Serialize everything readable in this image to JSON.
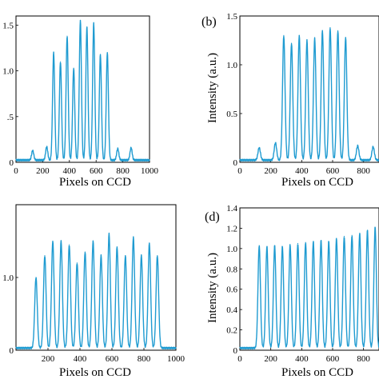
{
  "chart_data": [
    {
      "panel_label": "",
      "type": "line",
      "color": "#1f9bd1",
      "xlabel": "Pixels on CCD",
      "ylabel": "",
      "xlim": [
        0,
        1000
      ],
      "ylim": [
        0,
        1.6
      ],
      "xticks": [
        0,
        200,
        400,
        600,
        800,
        1000
      ],
      "yticks": [
        0,
        0.5,
        1.0,
        1.5
      ],
      "ytick_labels": [
        "0",
        ".5",
        "1.0",
        "1.5"
      ],
      "peaks": [
        {
          "x": 125,
          "y": 0.13
        },
        {
          "x": 230,
          "y": 0.17
        },
        {
          "x": 282,
          "y": 1.2
        },
        {
          "x": 333,
          "y": 1.1
        },
        {
          "x": 383,
          "y": 1.38
        },
        {
          "x": 432,
          "y": 1.03
        },
        {
          "x": 482,
          "y": 1.55
        },
        {
          "x": 531,
          "y": 1.48
        },
        {
          "x": 582,
          "y": 1.52
        },
        {
          "x": 632,
          "y": 1.18
        },
        {
          "x": 684,
          "y": 1.2
        },
        {
          "x": 762,
          "y": 0.15
        },
        {
          "x": 862,
          "y": 0.16
        }
      ]
    },
    {
      "panel_label": "(b)",
      "type": "line",
      "color": "#1f9bd1",
      "xlabel": "Pixels on CCD",
      "ylabel": "Intensity (a.u.)",
      "xlim": [
        0,
        900
      ],
      "ylim": [
        0,
        1.5
      ],
      "xticks": [
        0,
        200,
        400,
        600,
        800
      ],
      "yticks": [
        0,
        0.5,
        1.0,
        1.5
      ],
      "ytick_labels": [
        "0",
        "0.5",
        "1.0",
        "1.5"
      ],
      "peaks": [
        {
          "x": 125,
          "y": 0.15
        },
        {
          "x": 230,
          "y": 0.2
        },
        {
          "x": 284,
          "y": 1.3
        },
        {
          "x": 334,
          "y": 1.22
        },
        {
          "x": 384,
          "y": 1.3
        },
        {
          "x": 434,
          "y": 1.25
        },
        {
          "x": 484,
          "y": 1.27
        },
        {
          "x": 534,
          "y": 1.35
        },
        {
          "x": 584,
          "y": 1.38
        },
        {
          "x": 634,
          "y": 1.35
        },
        {
          "x": 684,
          "y": 1.28
        },
        {
          "x": 762,
          "y": 0.17
        },
        {
          "x": 862,
          "y": 0.16
        }
      ]
    },
    {
      "panel_label": "",
      "type": "line",
      "color": "#1f9bd1",
      "xlabel": "Pixels on CCD",
      "ylabel": "",
      "xlim": [
        0,
        1000
      ],
      "ylim": [
        0,
        2.0
      ],
      "xticks": [
        200,
        400,
        600,
        800,
        1000
      ],
      "yticks": [
        0,
        1.0
      ],
      "ytick_labels": [
        "0",
        "1.0"
      ],
      "peaks": [
        {
          "x": 125,
          "y": 1.0
        },
        {
          "x": 180,
          "y": 1.3
        },
        {
          "x": 230,
          "y": 1.5
        },
        {
          "x": 282,
          "y": 1.5
        },
        {
          "x": 333,
          "y": 1.45
        },
        {
          "x": 382,
          "y": 1.2
        },
        {
          "x": 432,
          "y": 1.35
        },
        {
          "x": 482,
          "y": 1.5
        },
        {
          "x": 532,
          "y": 1.3
        },
        {
          "x": 582,
          "y": 1.6
        },
        {
          "x": 632,
          "y": 1.42
        },
        {
          "x": 684,
          "y": 1.3
        },
        {
          "x": 734,
          "y": 1.55
        },
        {
          "x": 784,
          "y": 1.3
        },
        {
          "x": 834,
          "y": 1.47
        },
        {
          "x": 884,
          "y": 1.3
        }
      ]
    },
    {
      "panel_label": "(d)",
      "type": "line",
      "color": "#1f9bd1",
      "xlabel": "Pixels on CCD",
      "ylabel": "Intensity (a.u.)",
      "xlim": [
        0,
        900
      ],
      "ylim": [
        0,
        1.4
      ],
      "xticks": [
        0,
        200,
        400,
        600,
        800
      ],
      "yticks": [
        0,
        0.2,
        0.4,
        0.6,
        0.8,
        1.0,
        1.2,
        1.4
      ],
      "ytick_labels": [
        "0",
        "0.2",
        "0.4",
        "0.6",
        "0.8",
        "1.0",
        "1.2",
        "1.4"
      ],
      "peaks": [
        {
          "x": 125,
          "y": 1.03
        },
        {
          "x": 175,
          "y": 1.02
        },
        {
          "x": 225,
          "y": 1.03
        },
        {
          "x": 275,
          "y": 1.02
        },
        {
          "x": 325,
          "y": 1.04
        },
        {
          "x": 375,
          "y": 1.05
        },
        {
          "x": 425,
          "y": 1.06
        },
        {
          "x": 475,
          "y": 1.07
        },
        {
          "x": 525,
          "y": 1.08
        },
        {
          "x": 575,
          "y": 1.07
        },
        {
          "x": 625,
          "y": 1.1
        },
        {
          "x": 675,
          "y": 1.12
        },
        {
          "x": 725,
          "y": 1.13
        },
        {
          "x": 775,
          "y": 1.15
        },
        {
          "x": 825,
          "y": 1.18
        },
        {
          "x": 875,
          "y": 1.21
        }
      ]
    }
  ]
}
